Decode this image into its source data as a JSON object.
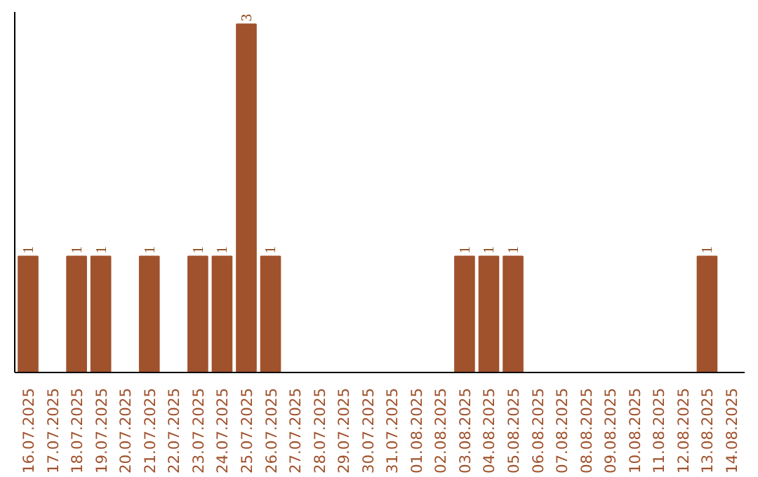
{
  "chart_data": {
    "type": "bar",
    "categories": [
      "16.07.2025",
      "17.07.2025",
      "18.07.2025",
      "19.07.2025",
      "20.07.2025",
      "21.07.2025",
      "22.07.2025",
      "23.07.2025",
      "24.07.2025",
      "25.07.2025",
      "26.07.2025",
      "27.07.2025",
      "28.07.2025",
      "29.07.2025",
      "30.07.2025",
      "31.07.2025",
      "01.08.2025",
      "02.08.2025",
      "03.08.2025",
      "04.08.2025",
      "05.08.2025",
      "06.08.2025",
      "07.08.2025",
      "08.08.2025",
      "09.08.2025",
      "10.08.2025",
      "11.08.2025",
      "12.08.2025",
      "13.08.2025",
      "14.08.2025"
    ],
    "values": [
      1,
      0,
      1,
      1,
      0,
      1,
      0,
      1,
      1,
      3,
      1,
      0,
      0,
      0,
      0,
      0,
      0,
      0,
      1,
      1,
      1,
      0,
      0,
      0,
      0,
      0,
      0,
      0,
      1,
      0
    ],
    "value_labels": [
      "1",
      null,
      "1",
      "1",
      null,
      "1",
      null,
      "1",
      "1",
      "3",
      "1",
      null,
      null,
      null,
      null,
      null,
      null,
      null,
      "1",
      "1",
      "1",
      null,
      null,
      null,
      null,
      null,
      null,
      null,
      "1",
      null
    ],
    "color": "#a0522d",
    "grid": false,
    "tick_labels": "x"
  }
}
